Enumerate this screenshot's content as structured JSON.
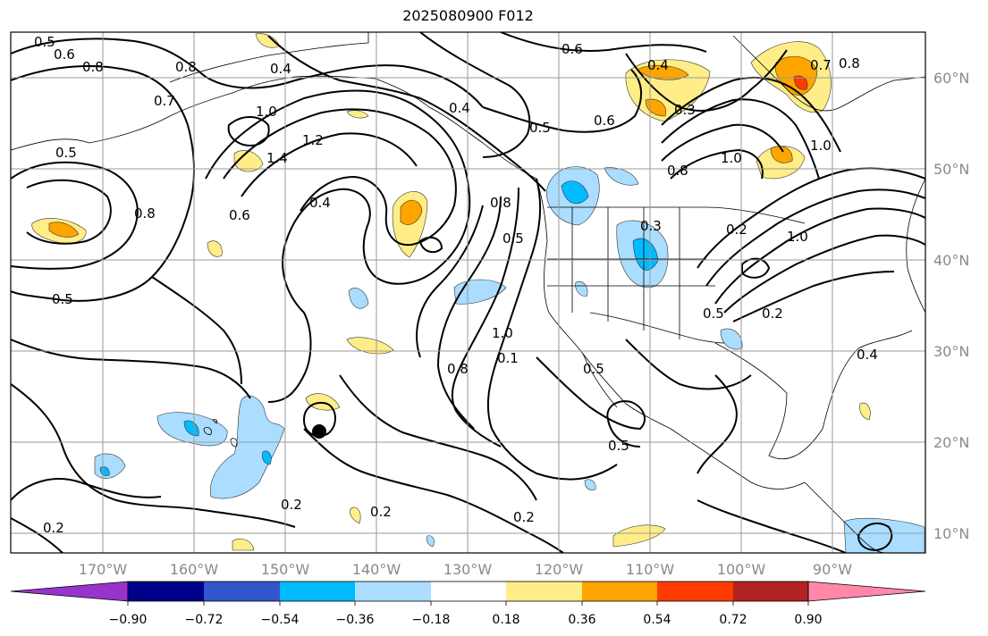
{
  "title": "2025080900 F012",
  "map": {
    "lon_labels": [
      "170°W",
      "160°W",
      "150°W",
      "140°W",
      "130°W",
      "120°W",
      "110°W",
      "100°W",
      "90°W"
    ],
    "lat_labels": [
      "60°N",
      "50°N",
      "40°N",
      "30°N",
      "20°N",
      "10°N"
    ],
    "contour_labels": [
      "0.5",
      "0.6",
      "0.8",
      "0.7",
      "0.8",
      "0.4",
      "1.0",
      "1.2",
      "1.4",
      "0.5",
      "0.8",
      "0.6",
      "0.4",
      "0.5",
      "0.4",
      "0.6",
      "0.4",
      "0.3",
      "0.5",
      "0.6",
      "0.7",
      "0.8",
      "1.0",
      "1.0",
      "0.8",
      "0.8",
      "0.3",
      "0.2",
      "1.0",
      "0.5",
      "0.2",
      "1.0",
      "0.5",
      "0.8",
      "0.1",
      "0.5",
      "0.5",
      "0.2",
      "0.2",
      "0.2",
      "0.4",
      "0.2"
    ],
    "colors": {
      "land_outline": "#000000",
      "grid": "#9a9a9a"
    }
  },
  "colorbar": {
    "ticks": [
      "−0.90",
      "−0.72",
      "−0.54",
      "−0.36",
      "−0.18",
      "0.18",
      "0.36",
      "0.54",
      "0.72",
      "0.90"
    ],
    "colors": [
      "#9933cc",
      "#000088",
      "#3355cc",
      "#00bbff",
      "#aaddff",
      "#ffffff",
      "#ffee88",
      "#ffa500",
      "#ff3c00",
      "#b22222",
      "#ff88aa"
    ]
  }
}
